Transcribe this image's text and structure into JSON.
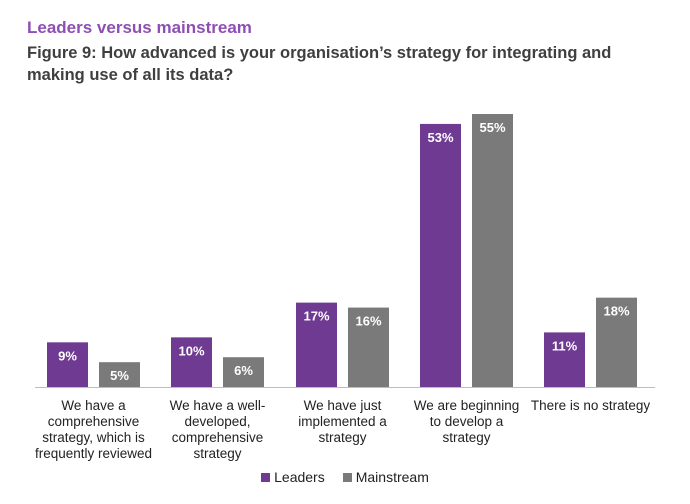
{
  "header": {
    "subtitle": "Leaders versus mainstream",
    "title": "Figure 9: How advanced is your organisation’s strategy for integrating and making use of all its data?"
  },
  "colors": {
    "leaders": "#6f3a91",
    "mainstream": "#7a7a7a",
    "axis": "#bdbdbd",
    "subtitle": "#8e4fb4"
  },
  "chart_data": {
    "type": "bar",
    "title": "Figure 9: How advanced is your organisation’s strategy for integrating and making use of all its data?",
    "subtitle": "Leaders versus mainstream",
    "categories": [
      "We have a comprehensive strategy, which is frequently reviewed",
      "We have a well-developed, comprehensive strategy",
      "We have just implemented a strategy",
      "We are beginning to develop a strategy",
      "There is no strategy"
    ],
    "category_lines": [
      [
        "We have a",
        "comprehensive",
        "strategy, which is",
        "frequently reviewed"
      ],
      [
        "We have a well-",
        "developed,",
        "comprehensive",
        "strategy"
      ],
      [
        "We have just",
        "implemented a",
        "strategy"
      ],
      [
        "We are beginning",
        "to develop a",
        "strategy"
      ],
      [
        "There is no strategy"
      ]
    ],
    "series": [
      {
        "name": "Leaders",
        "values": [
          9,
          10,
          17,
          53,
          11
        ],
        "labels": [
          "9%",
          "10%",
          "17%",
          "53%",
          "11%"
        ]
      },
      {
        "name": "Mainstream",
        "values": [
          5,
          6,
          16,
          55,
          18
        ],
        "labels": [
          "5%",
          "6%",
          "16%",
          "55%",
          "18%"
        ]
      }
    ],
    "ylim": [
      0,
      55
    ],
    "unit": "%",
    "grid": false,
    "legend_position": "bottom-center"
  }
}
